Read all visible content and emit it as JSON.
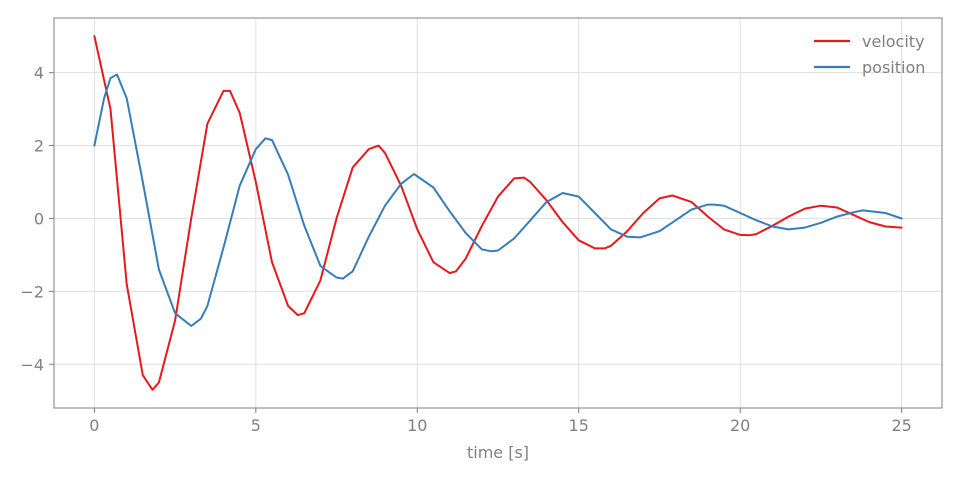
{
  "chart_data": {
    "type": "line",
    "title": "",
    "xlabel": "time [s]",
    "ylabel": "",
    "xlim": [
      -1.25,
      26.25
    ],
    "ylim": [
      -5.2,
      5.5
    ],
    "xticks": [
      0,
      5,
      10,
      15,
      20,
      25
    ],
    "xtick_labels": [
      "0",
      "5",
      "10",
      "15",
      "20",
      "25"
    ],
    "yticks": [
      -4,
      -2,
      0,
      2,
      4
    ],
    "ytick_labels": [
      "−4",
      "−2",
      "0",
      "2",
      "4"
    ],
    "grid": true,
    "legend_position": "top-right",
    "colors": {
      "velocity": "#e41a1c",
      "position": "#377eb8",
      "axes": "#808080",
      "grid": "#e0e0e0"
    },
    "series": [
      {
        "name": "velocity",
        "color": "#e41a1c",
        "x": [
          0,
          0.5,
          1.0,
          1.5,
          1.8,
          2.0,
          2.5,
          3.0,
          3.5,
          4.0,
          4.2,
          4.5,
          5.0,
          5.5,
          6.0,
          6.3,
          6.5,
          7.0,
          7.5,
          8.0,
          8.5,
          8.8,
          9.0,
          9.5,
          10.0,
          10.5,
          11.0,
          11.2,
          11.5,
          12.0,
          12.5,
          13.0,
          13.3,
          13.5,
          14.0,
          14.5,
          15.0,
          15.5,
          15.8,
          16.0,
          16.5,
          17.0,
          17.5,
          17.9,
          18.5,
          19.0,
          19.5,
          20.0,
          20.3,
          20.5,
          21.0,
          21.5,
          22.0,
          22.5,
          23.0,
          23.5,
          24.0,
          24.5,
          25.0
        ],
        "y": [
          5.0,
          3.0,
          -1.8,
          -4.3,
          -4.7,
          -4.5,
          -2.8,
          0.0,
          2.6,
          3.5,
          3.5,
          2.9,
          1.0,
          -1.2,
          -2.4,
          -2.65,
          -2.6,
          -1.7,
          0.0,
          1.4,
          1.9,
          2.0,
          1.8,
          0.9,
          -0.3,
          -1.2,
          -1.5,
          -1.45,
          -1.1,
          -0.2,
          0.6,
          1.1,
          1.12,
          1.0,
          0.5,
          -0.1,
          -0.6,
          -0.82,
          -0.82,
          -0.75,
          -0.35,
          0.15,
          0.55,
          0.63,
          0.45,
          0.05,
          -0.3,
          -0.45,
          -0.46,
          -0.43,
          -0.2,
          0.05,
          0.27,
          0.35,
          0.3,
          0.1,
          -0.1,
          -0.22,
          -0.25
        ]
      },
      {
        "name": "position",
        "color": "#377eb8",
        "x": [
          0,
          0.3,
          0.5,
          0.7,
          1.0,
          1.5,
          2.0,
          2.5,
          3.0,
          3.3,
          3.5,
          4.0,
          4.5,
          5.0,
          5.3,
          5.5,
          6.0,
          6.5,
          7.0,
          7.5,
          7.7,
          8.0,
          8.5,
          9.0,
          9.5,
          9.9,
          10.5,
          11.0,
          11.5,
          12.0,
          12.3,
          12.5,
          13.0,
          13.5,
          14.0,
          14.5,
          15.0,
          15.5,
          16.0,
          16.5,
          16.9,
          17.5,
          18.0,
          18.5,
          19.0,
          19.2,
          19.5,
          20.0,
          20.5,
          21.0,
          21.5,
          22.0,
          22.5,
          23.0,
          23.5,
          23.8,
          24.5,
          25.0
        ],
        "y": [
          2.0,
          3.3,
          3.85,
          3.95,
          3.3,
          1.0,
          -1.4,
          -2.6,
          -2.95,
          -2.75,
          -2.4,
          -0.8,
          0.9,
          1.9,
          2.2,
          2.15,
          1.2,
          -0.2,
          -1.3,
          -1.62,
          -1.65,
          -1.45,
          -0.5,
          0.35,
          0.95,
          1.22,
          0.85,
          0.2,
          -0.4,
          -0.85,
          -0.9,
          -0.88,
          -0.55,
          -0.05,
          0.45,
          0.7,
          0.6,
          0.15,
          -0.3,
          -0.5,
          -0.52,
          -0.35,
          -0.05,
          0.25,
          0.38,
          0.38,
          0.35,
          0.15,
          -0.05,
          -0.22,
          -0.3,
          -0.25,
          -0.12,
          0.05,
          0.17,
          0.22,
          0.15,
          0.0
        ]
      }
    ]
  }
}
